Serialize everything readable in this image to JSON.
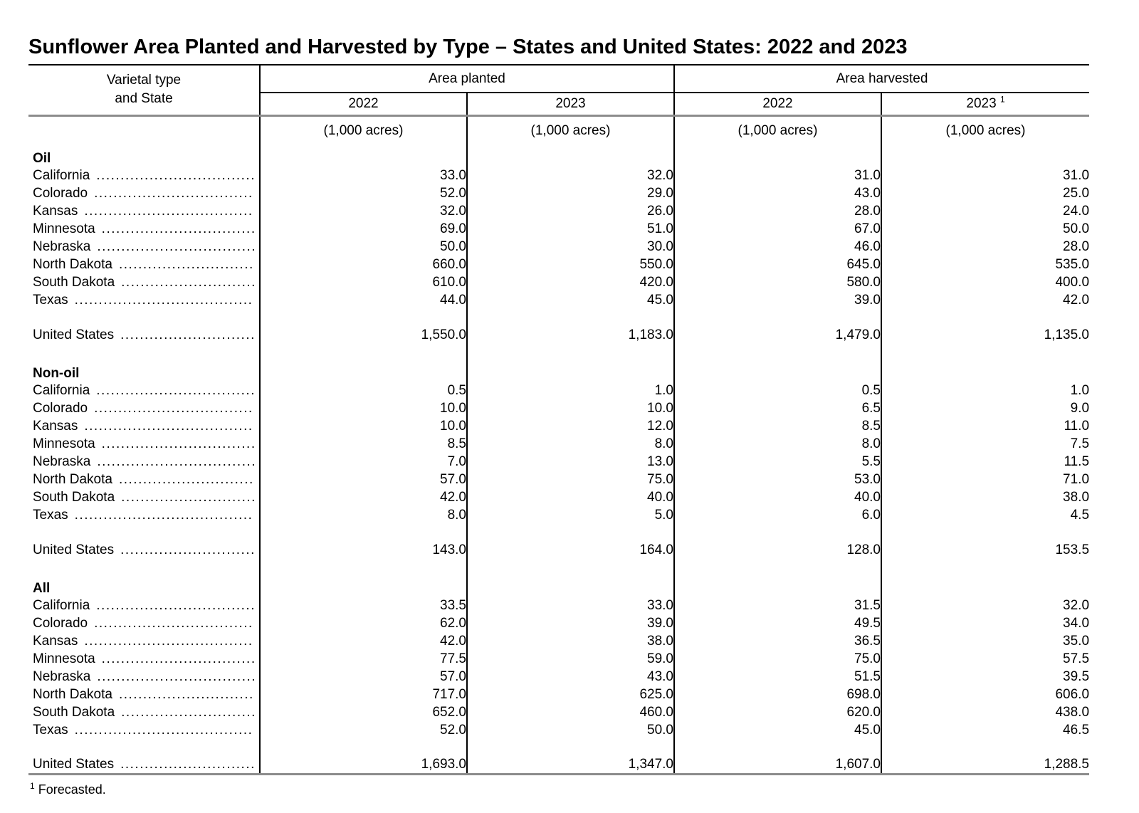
{
  "title": "Sunflower Area Planted and Harvested by Type – States and United States: 2022 and 2023",
  "table": {
    "col1_header_line1": "Varietal type",
    "col1_header_line2": "and State",
    "group_headers": [
      "Area planted",
      "Area harvested"
    ],
    "year_headers": [
      "2022",
      "2023",
      "2022",
      "2023"
    ],
    "units": "(1,000 acres)",
    "sections": [
      {
        "name": "Oil",
        "rows": [
          {
            "label": "California",
            "values": [
              "33.0",
              "32.0",
              "31.0",
              "31.0"
            ]
          },
          {
            "label": "Colorado",
            "values": [
              "52.0",
              "29.0",
              "43.0",
              "25.0"
            ]
          },
          {
            "label": "Kansas",
            "values": [
              "32.0",
              "26.0",
              "28.0",
              "24.0"
            ]
          },
          {
            "label": "Minnesota",
            "values": [
              "69.0",
              "51.0",
              "67.0",
              "50.0"
            ]
          },
          {
            "label": "Nebraska",
            "values": [
              "50.0",
              "30.0",
              "46.0",
              "28.0"
            ]
          },
          {
            "label": "North Dakota",
            "values": [
              "660.0",
              "550.0",
              "645.0",
              "535.0"
            ]
          },
          {
            "label": "South Dakota",
            "values": [
              "610.0",
              "420.0",
              "580.0",
              "400.0"
            ]
          },
          {
            "label": "Texas",
            "values": [
              "44.0",
              "45.0",
              "39.0",
              "42.0"
            ]
          }
        ],
        "total": {
          "label": "United States",
          "values": [
            "1,550.0",
            "1,183.0",
            "1,479.0",
            "1,135.0"
          ]
        }
      },
      {
        "name": "Non-oil",
        "rows": [
          {
            "label": "California",
            "values": [
              "0.5",
              "1.0",
              "0.5",
              "1.0"
            ]
          },
          {
            "label": "Colorado",
            "values": [
              "10.0",
              "10.0",
              "6.5",
              "9.0"
            ]
          },
          {
            "label": "Kansas",
            "values": [
              "10.0",
              "12.0",
              "8.5",
              "11.0"
            ]
          },
          {
            "label": "Minnesota",
            "values": [
              "8.5",
              "8.0",
              "8.0",
              "7.5"
            ]
          },
          {
            "label": "Nebraska",
            "values": [
              "7.0",
              "13.0",
              "5.5",
              "11.5"
            ]
          },
          {
            "label": "North Dakota",
            "values": [
              "57.0",
              "75.0",
              "53.0",
              "71.0"
            ]
          },
          {
            "label": "South Dakota",
            "values": [
              "42.0",
              "40.0",
              "40.0",
              "38.0"
            ]
          },
          {
            "label": "Texas",
            "values": [
              "8.0",
              "5.0",
              "6.0",
              "4.5"
            ]
          }
        ],
        "total": {
          "label": "United States",
          "values": [
            "143.0",
            "164.0",
            "128.0",
            "153.5"
          ]
        }
      },
      {
        "name": "All",
        "rows": [
          {
            "label": "California",
            "values": [
              "33.5",
              "33.0",
              "31.5",
              "32.0"
            ]
          },
          {
            "label": "Colorado",
            "values": [
              "62.0",
              "39.0",
              "49.5",
              "34.0"
            ]
          },
          {
            "label": "Kansas",
            "values": [
              "42.0",
              "38.0",
              "36.5",
              "35.0"
            ]
          },
          {
            "label": "Minnesota",
            "values": [
              "77.5",
              "59.0",
              "75.0",
              "57.5"
            ]
          },
          {
            "label": "Nebraska",
            "values": [
              "57.0",
              "43.0",
              "51.5",
              "39.5"
            ]
          },
          {
            "label": "North Dakota",
            "values": [
              "717.0",
              "625.0",
              "698.0",
              "606.0"
            ]
          },
          {
            "label": "South Dakota",
            "values": [
              "652.0",
              "460.0",
              "620.0",
              "438.0"
            ]
          },
          {
            "label": "Texas",
            "values": [
              "52.0",
              "50.0",
              "45.0",
              "46.5"
            ]
          }
        ],
        "total": {
          "label": "United States",
          "values": [
            "1,693.0",
            "1,347.0",
            "1,607.0",
            "1,288.5"
          ]
        }
      }
    ],
    "footnote_marker": "1",
    "footnote_text": "Forecasted."
  }
}
